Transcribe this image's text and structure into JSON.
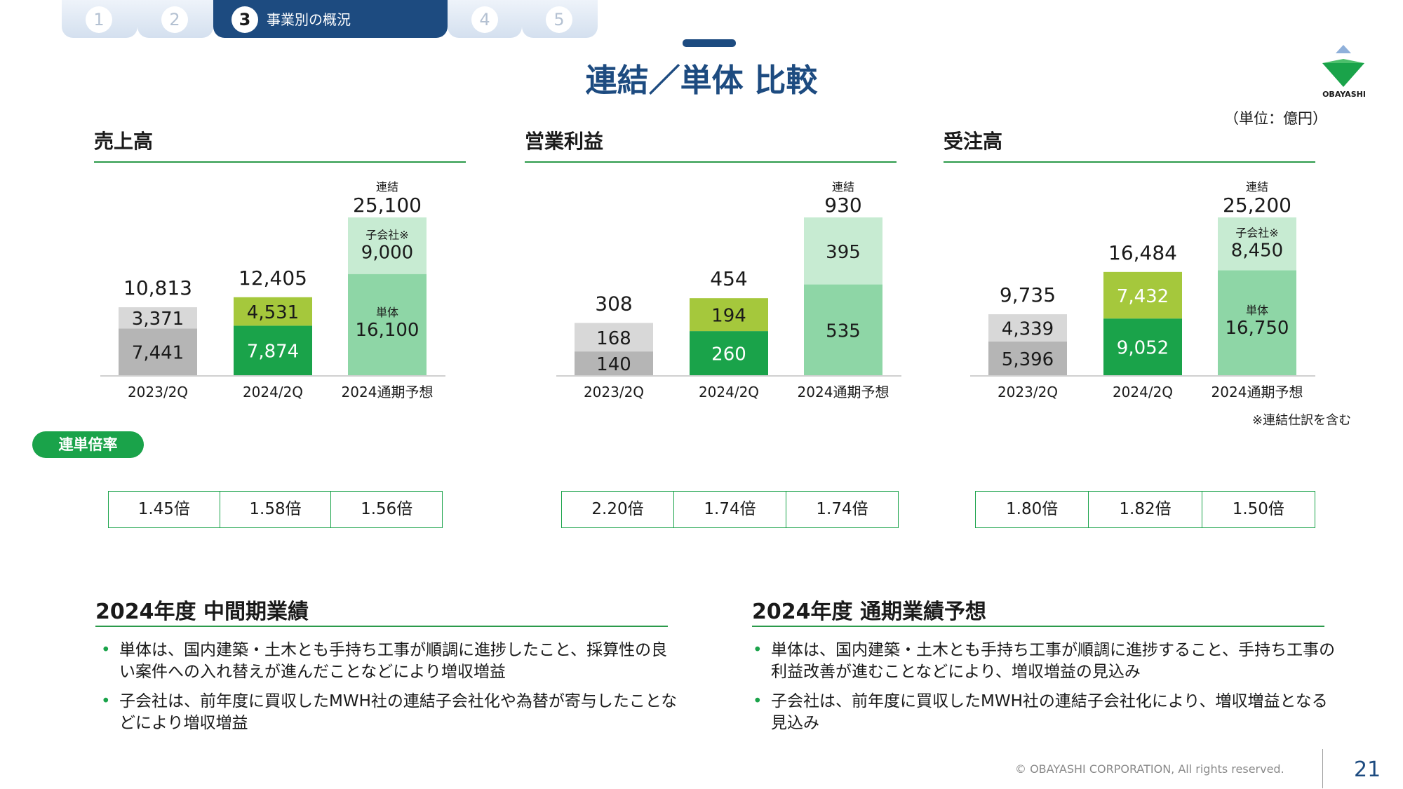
{
  "tabs": [
    {
      "num": "1",
      "label": ""
    },
    {
      "num": "2",
      "label": ""
    },
    {
      "num": "3",
      "label": "事業別の概況"
    },
    {
      "num": "4",
      "label": ""
    },
    {
      "num": "5",
      "label": ""
    }
  ],
  "title": "連結／単体 比較",
  "logo_text": "OBAYASHI",
  "unit": "（単位：億円）",
  "note": "※連結仕訳を含む",
  "colors": {
    "navy": "#1d4b80",
    "green_dark": "#1aa34a",
    "green_lime": "#a5c83c",
    "green_mid": "#8ed6a6",
    "green_light": "#c7ebd2",
    "grey_dark": "#b5b5b5",
    "grey_light": "#d8d8d8"
  },
  "chart_data": [
    {
      "type": "bar",
      "title": "売上高",
      "categories": [
        "2023/2Q",
        "2024/2Q",
        "2024通期予想"
      ],
      "series": [
        {
          "name": "単体",
          "values": [
            7441,
            7874,
            16100
          ]
        },
        {
          "name": "子会社※",
          "values": [
            3371,
            4531,
            9000
          ]
        }
      ],
      "totals": [
        "10,813",
        "12,405",
        "25,100"
      ],
      "top_labels": [
        "7,441",
        "7,874",
        "16,100"
      ],
      "sub_labels": [
        "3,371",
        "4,531",
        "9,000"
      ],
      "forecast_top_label": "単体",
      "forecast_sub_label": "子会社※",
      "forecast_total_label": "連結",
      "ylim": [
        0,
        25100
      ]
    },
    {
      "type": "bar",
      "title": "営業利益",
      "categories": [
        "2023/2Q",
        "2024/2Q",
        "2024通期予想"
      ],
      "series": [
        {
          "name": "単体",
          "values": [
            140,
            260,
            535
          ]
        },
        {
          "name": "子会社",
          "values": [
            168,
            194,
            395
          ]
        }
      ],
      "totals": [
        "308",
        "454",
        "930"
      ],
      "top_labels": [
        "140",
        "260",
        "535"
      ],
      "sub_labels": [
        "168",
        "194",
        "395"
      ],
      "forecast_top_label": "",
      "forecast_sub_label": "",
      "forecast_total_label": "連結",
      "ylim": [
        0,
        930
      ]
    },
    {
      "type": "bar",
      "title": "受注高",
      "categories": [
        "2023/2Q",
        "2024/2Q",
        "2024通期予想"
      ],
      "series": [
        {
          "name": "単体",
          "values": [
            5396,
            9052,
            16750
          ]
        },
        {
          "name": "子会社※",
          "values": [
            4339,
            7432,
            8450
          ]
        }
      ],
      "totals": [
        "9,735",
        "16,484",
        "25,200"
      ],
      "top_labels": [
        "5,396",
        "9,052",
        "16,750"
      ],
      "sub_labels": [
        "4,339",
        "7,432",
        "8,450"
      ],
      "forecast_top_label": "単体",
      "forecast_sub_label": "子会社※",
      "forecast_total_label": "連結",
      "ylim": [
        0,
        25200
      ]
    }
  ],
  "ratio": {
    "badge": "連単倍率",
    "groups": [
      [
        "1.45倍",
        "1.58倍",
        "1.56倍"
      ],
      [
        "2.20倍",
        "1.74倍",
        "1.74倍"
      ],
      [
        "1.80倍",
        "1.82倍",
        "1.50倍"
      ]
    ]
  },
  "bottom": {
    "left_title": "2024年度 中間期業績",
    "left_bullets": [
      "単体は、国内建築・土木とも手持ち工事が順調に進捗したこと、採算性の良い案件への入れ替えが進んだことなどにより増収増益",
      "子会社は、前年度に買収したMWH社の連結子会社化や為替が寄与したことなどにより増収増益"
    ],
    "right_title": "2024年度 通期業績予想",
    "right_bullets": [
      "単体は、国内建築・土木とも手持ち工事が順調に進捗すること、手持ち工事の利益改善が進むことなどにより、増収増益の見込み",
      "子会社は、前年度に買収したMWH社の連結子会社化により、増収増益となる見込み"
    ],
    "bullet_symbol": "•"
  },
  "footer": {
    "copyright": "© OBAYASHI CORPORATION, All rights reserved.",
    "page": "21"
  }
}
